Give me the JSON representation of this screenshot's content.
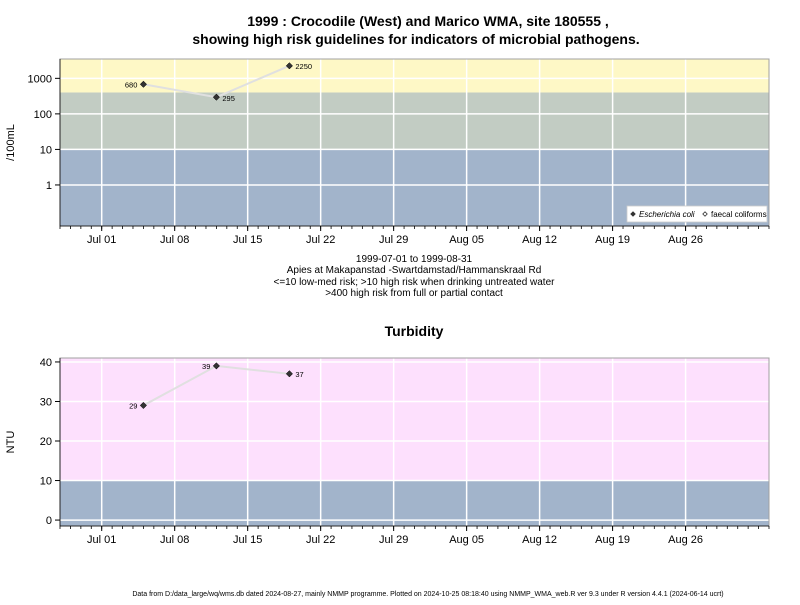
{
  "title_line1": "1999 : Crocodile (West) and Marico WMA, site 180555 ,",
  "title_line2": "showing high risk guidelines for indicators of microbial pathogens.",
  "subtitle_lines": [
    "1999-07-01 to 1999-08-31",
    "Apies at Makapanstad -Swartdamstad/Hammanskraal Rd",
    "<=10 low-med risk; >10 high risk when drinking untreated water",
    ">400 high risk from full or partial contact"
  ],
  "footer": "Data from D:/data_large/wq/wms.db dated 2024-08-27, mainly NMMP programme. Plotted on 2024-10-25 08:18:40 using NMMP_WMA_web.R ver 9.3 under R version 4.4.1 (2024-06-14 ucrt)",
  "colors": {
    "band_low": "#a2b4cb",
    "band_mid": "#c2ccc3",
    "band_high": "#fef8c6",
    "band_turb_high": "#fde0fd",
    "grid": "#ffffff",
    "line": "#e0e0e0",
    "point": "#333333"
  },
  "chart_data": [
    {
      "type": "line",
      "ylabel": "/100mL",
      "yscale": "log",
      "yticks": [
        "1",
        "10",
        "100",
        "1000"
      ],
      "xticks": [
        "Jul 01",
        "Jul 08",
        "Jul 15",
        "Jul 22",
        "Jul 29",
        "Aug 05",
        "Aug 12",
        "Aug 19",
        "Aug 26"
      ],
      "xlim": [
        "1999-06-27",
        "1999-09-03"
      ],
      "ylim": [
        0.07,
        3500
      ],
      "bands": [
        {
          "from": 0.07,
          "to": 10,
          "color": "#a2b4cb"
        },
        {
          "from": 10,
          "to": 400,
          "color": "#c2ccc3"
        },
        {
          "from": 400,
          "to": 3500,
          "color": "#fef8c6"
        }
      ],
      "series": [
        {
          "name": "Escherichia coli",
          "marker": "filled-diamond",
          "x": [
            "1999-07-05",
            "1999-07-12",
            "1999-07-19"
          ],
          "y": [
            680,
            295,
            2250
          ],
          "labels": [
            "680",
            "295",
            "2250"
          ]
        },
        {
          "name": "faecal coliforms",
          "marker": "open-diamond",
          "x": [],
          "y": [],
          "labels": []
        }
      ],
      "legend": "bottom-right"
    },
    {
      "type": "line",
      "title": "Turbidity",
      "ylabel": "NTU",
      "yticks": [
        "0",
        "10",
        "20",
        "30",
        "40"
      ],
      "xticks": [
        "Jul 01",
        "Jul 08",
        "Jul 15",
        "Jul 22",
        "Jul 29",
        "Aug 05",
        "Aug 12",
        "Aug 19",
        "Aug 26"
      ],
      "xlim": [
        "1999-06-27",
        "1999-09-03"
      ],
      "ylim": [
        -1.5,
        41
      ],
      "bands": [
        {
          "from": -1.5,
          "to": 10,
          "color": "#a2b4cb"
        },
        {
          "from": 10,
          "to": 41,
          "color": "#fde0fd"
        }
      ],
      "series": [
        {
          "marker": "filled-diamond",
          "x": [
            "1999-07-05",
            "1999-07-12",
            "1999-07-19"
          ],
          "y": [
            29,
            39,
            37
          ],
          "labels": [
            "29",
            "39",
            "37"
          ]
        }
      ]
    }
  ]
}
